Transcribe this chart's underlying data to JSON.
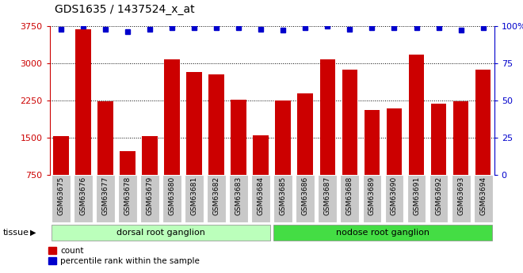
{
  "title": "GDS1635 / 1437524_x_at",
  "samples": [
    "GSM63675",
    "GSM63676",
    "GSM63677",
    "GSM63678",
    "GSM63679",
    "GSM63680",
    "GSM63681",
    "GSM63682",
    "GSM63683",
    "GSM63684",
    "GSM63685",
    "GSM63686",
    "GSM63687",
    "GSM63688",
    "GSM63689",
    "GSM63690",
    "GSM63691",
    "GSM63692",
    "GSM63693",
    "GSM63694"
  ],
  "counts": [
    1530,
    3680,
    2230,
    1230,
    1530,
    3080,
    2820,
    2780,
    2260,
    1540,
    2240,
    2390,
    3070,
    2870,
    2050,
    2080,
    3170,
    2180,
    2230,
    2870
  ],
  "percentiles": [
    98,
    100,
    98,
    96,
    98,
    99,
    99,
    99,
    99,
    98,
    97,
    99,
    100,
    98,
    99,
    99,
    99,
    99,
    97,
    99
  ],
  "ylim_left": [
    750,
    3750
  ],
  "ylim_right": [
    0,
    100
  ],
  "yticks_left": [
    750,
    1500,
    2250,
    3000,
    3750
  ],
  "yticks_right": [
    0,
    25,
    50,
    75,
    100
  ],
  "bar_color": "#cc0000",
  "percentile_color": "#0000cc",
  "tissue_groups": [
    {
      "label": "dorsal root ganglion",
      "start": 0,
      "end": 9,
      "color": "#bbffbb"
    },
    {
      "label": "nodose root ganglion",
      "start": 10,
      "end": 19,
      "color": "#44dd44"
    }
  ],
  "tissue_label": "tissue",
  "legend_count_label": "count",
  "legend_percentile_label": "percentile rank within the sample",
  "bg_color": "#ffffff",
  "tick_area_color": "#c8c8c8"
}
